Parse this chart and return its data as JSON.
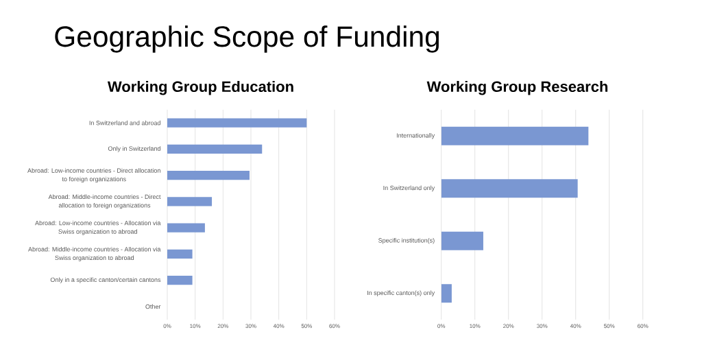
{
  "chart_data": [
    {
      "type": "bar",
      "orientation": "horizontal",
      "title": "Working Group Education",
      "annotations": [
        "Geographic Scope of Funding"
      ],
      "categories": [
        "In Switzerland and abroad",
        "Only in Switzerland",
        "Abroad: Low-income countries - Direct allocation to foreign organizations",
        "Abroad: Middle-income countries - Direct allocation to foreign organizations",
        "Abroad: Low-income countries - Allocation via Swiss organization to abroad",
        "Abroad: Middle-income countries - Allocation via Swiss organization to abroad",
        "Only in a specific canton/certain cantons",
        "Other"
      ],
      "values": [
        50,
        34,
        29.5,
        16,
        13.5,
        9,
        9,
        0
      ],
      "color": "#7a97d2",
      "xlim": [
        0,
        60
      ],
      "xticks": [
        {
          "value": 0,
          "label": "0%"
        },
        {
          "value": 10,
          "label": "10%"
        },
        {
          "value": 20,
          "label": "20%"
        },
        {
          "value": 30,
          "label": "30%"
        },
        {
          "value": 40,
          "label": "40%"
        },
        {
          "value": 50,
          "label": "50%"
        },
        {
          "value": 60,
          "label": "60%"
        }
      ],
      "grid": "x"
    },
    {
      "type": "bar",
      "orientation": "horizontal",
      "title": "Working Group Research",
      "categories": [
        "Internationally",
        "In Switzerland only",
        "Specific institution(s)",
        "In specific canton(s) only"
      ],
      "values": [
        43.8,
        40.6,
        12.5,
        3.1
      ],
      "color": "#7a97d2",
      "xlim": [
        0,
        60
      ],
      "xticks": [
        {
          "value": 0,
          "label": "0%"
        },
        {
          "value": 10,
          "label": "10%"
        },
        {
          "value": 20,
          "label": "20%"
        },
        {
          "value": 30,
          "label": "30%"
        },
        {
          "value": 40,
          "label": "40%"
        },
        {
          "value": 50,
          "label": "50%"
        },
        {
          "value": 60,
          "label": "60%"
        }
      ],
      "grid": "x"
    }
  ]
}
